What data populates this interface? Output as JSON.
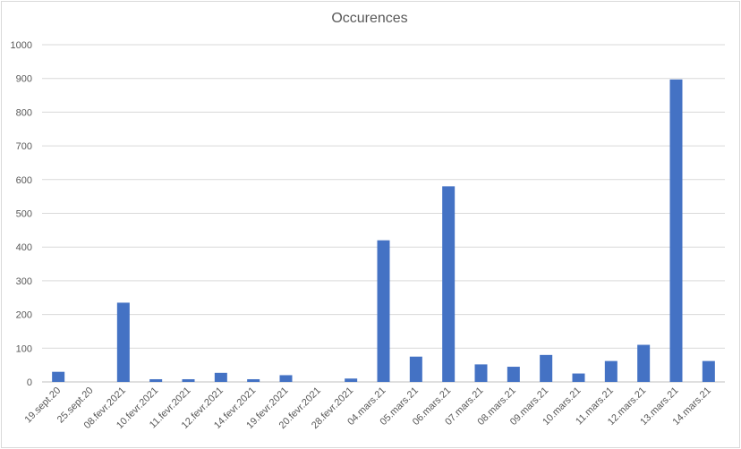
{
  "chart_data": {
    "type": "bar",
    "title": "Occurences",
    "xlabel": "",
    "ylabel": "",
    "ylim": [
      0,
      1000
    ],
    "yticks": [
      0,
      100,
      200,
      300,
      400,
      500,
      600,
      700,
      800,
      900,
      1000
    ],
    "grid": true,
    "legend": "none",
    "bar_color": "#4472C4",
    "categories": [
      "19.sept.20",
      "25.sept.20",
      "08.fevr.2021",
      "10.fevr.2021",
      "11.fevr.2021",
      "12.fevr.2021",
      "14.fevr.2021",
      "19.fevr.2021",
      "20.fevr.2021",
      "28.fevr.2021",
      "04.mars.21",
      "05.mars.21",
      "06.mars.21",
      "07.mars.21",
      "08.mars.21",
      "09.mars.21",
      "10.mars.21",
      "11.mars.21",
      "12.mars.21",
      "13.mars.21",
      "14.mars.21"
    ],
    "values": [
      30,
      0,
      235,
      8,
      8,
      27,
      8,
      20,
      0,
      10,
      420,
      75,
      580,
      52,
      45,
      80,
      25,
      62,
      110,
      897,
      62
    ]
  }
}
